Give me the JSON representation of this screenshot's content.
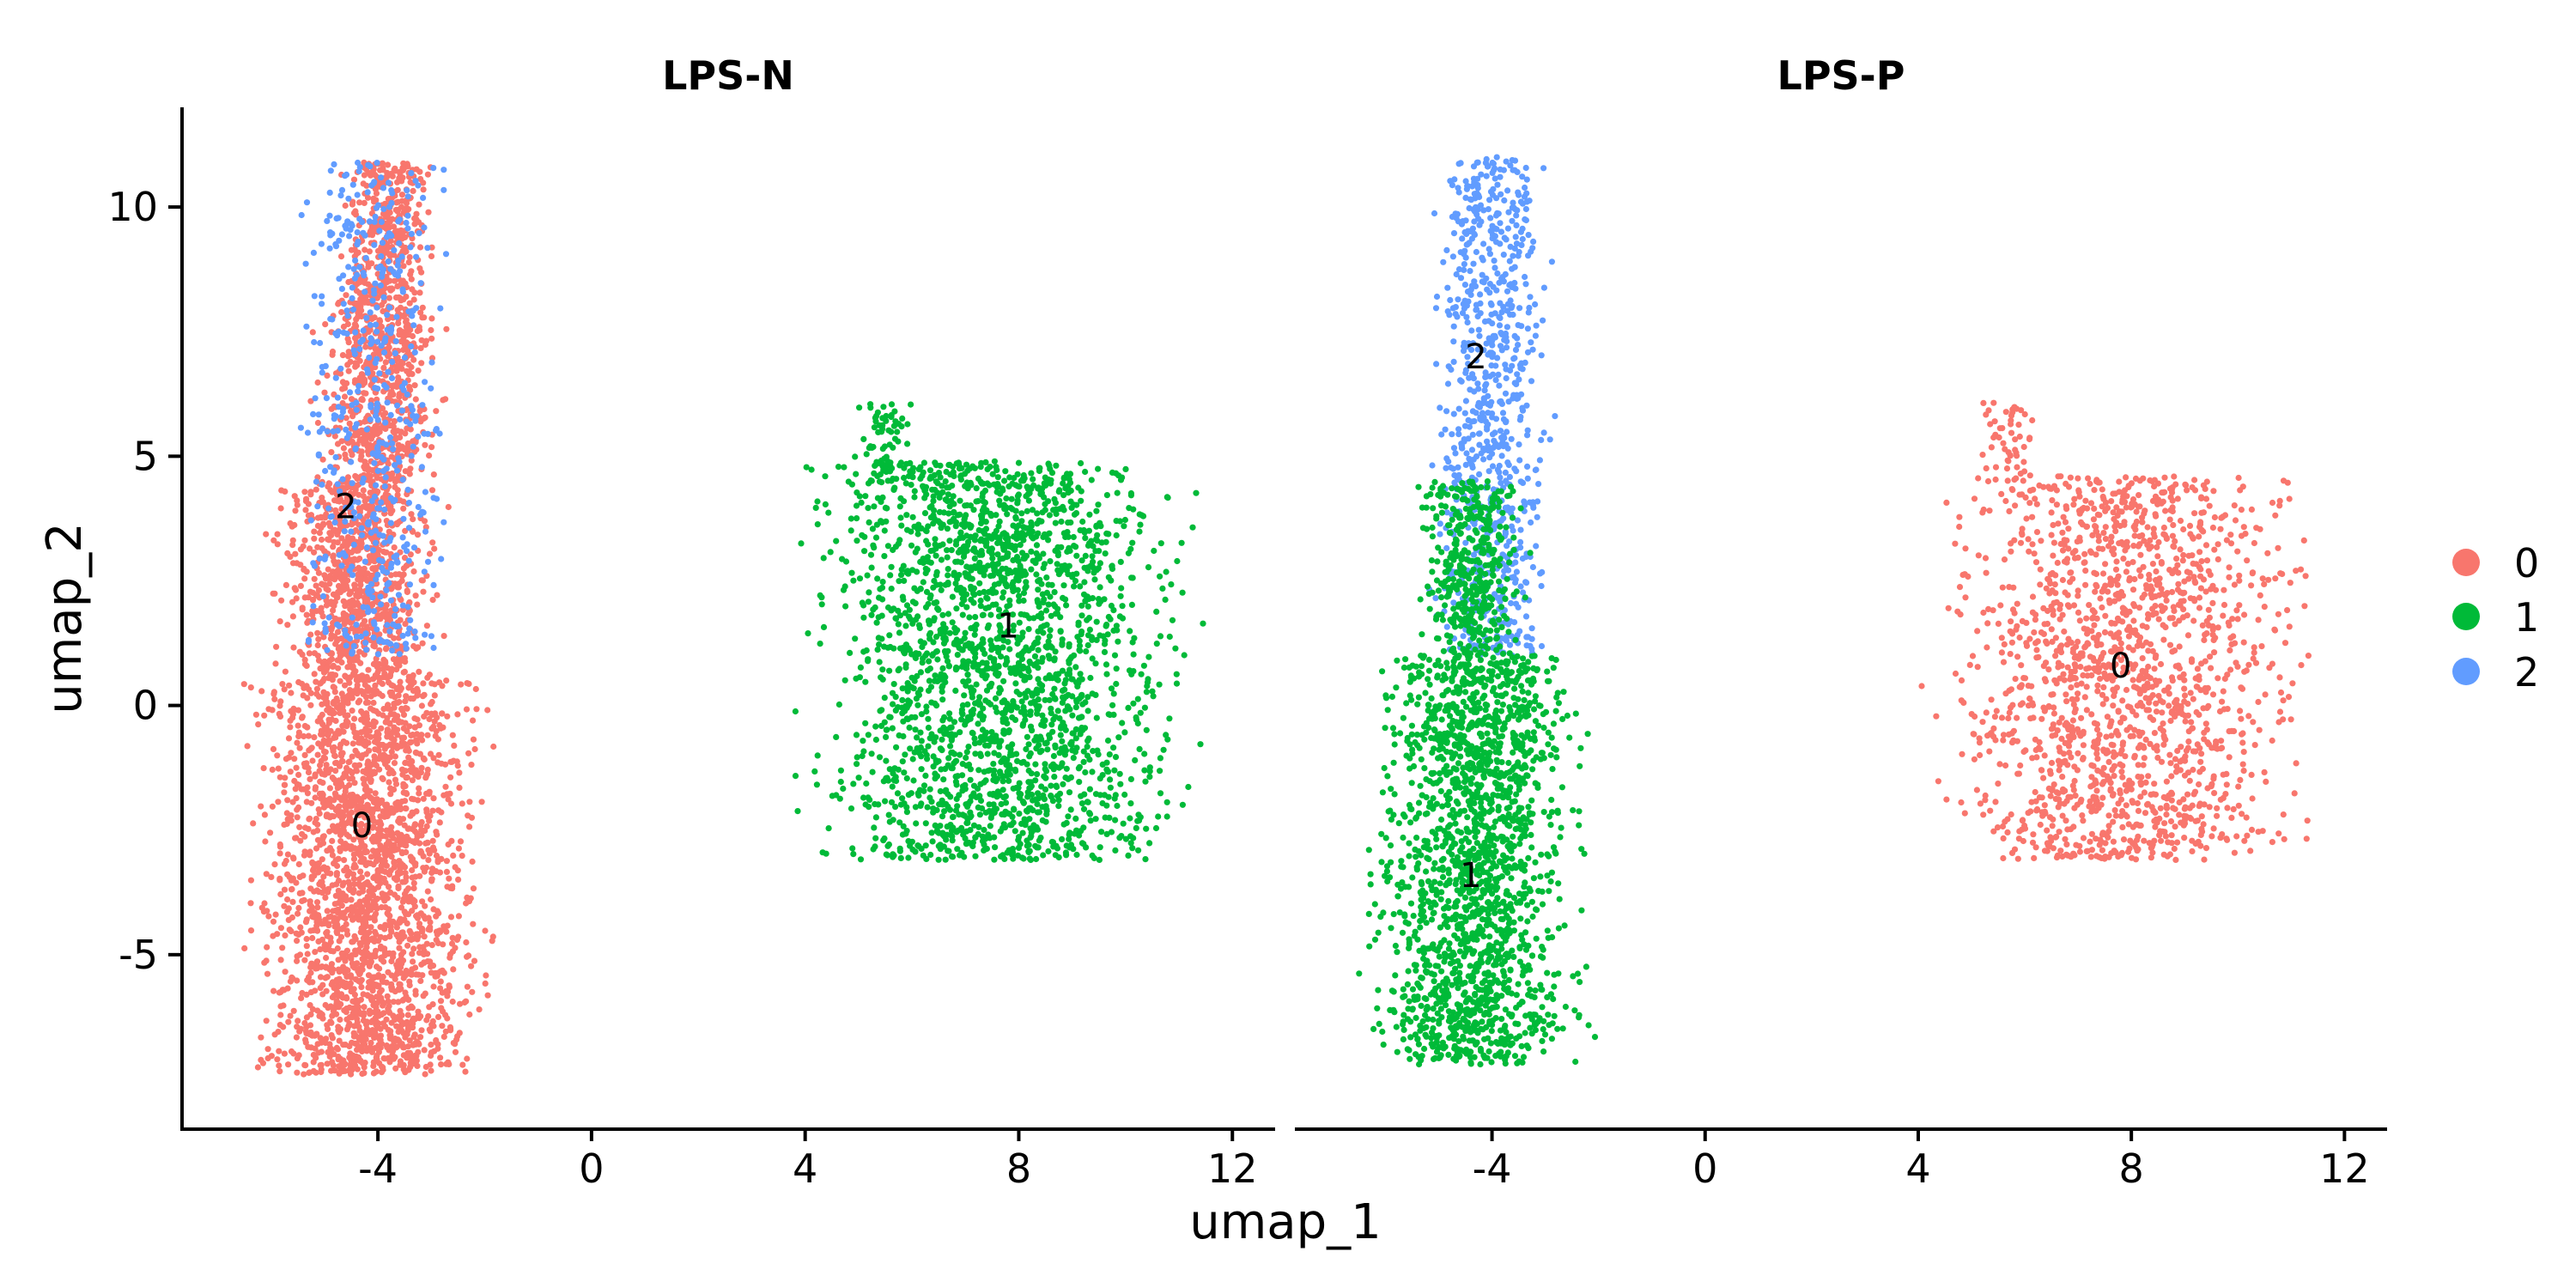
{
  "colors": {
    "cluster_0": "#F8766D",
    "cluster_1": "#00BA38",
    "cluster_2": "#619CFF"
  },
  "chart_data": {
    "type": "scatter",
    "xlabel": "umap_1",
    "ylabel": "umap_2",
    "xlim": [
      -7.7,
      12.8
    ],
    "ylim": [
      -8.5,
      12.0
    ],
    "x_ticks": [
      -4,
      0,
      4,
      8,
      12
    ],
    "y_ticks": [
      -5,
      0,
      5,
      10
    ],
    "x_tick_labels": [
      "-4",
      "0",
      "4",
      "8",
      "12"
    ],
    "y_tick_labels": [
      "-5",
      "0",
      "5",
      "10"
    ],
    "legend": {
      "position": "right",
      "entries": [
        {
          "label": "0",
          "color": "#F8766D"
        },
        {
          "label": "1",
          "color": "#00BA38"
        },
        {
          "label": "2",
          "color": "#619CFF"
        }
      ]
    },
    "panels": [
      {
        "title": "LPS-N",
        "cluster_labels": [
          {
            "text": "0",
            "x": -4.3,
            "y": -2.4
          },
          {
            "text": "1",
            "x": 7.8,
            "y": 1.6
          },
          {
            "text": "2",
            "x": -4.6,
            "y": 4.0
          }
        ],
        "clusters": [
          {
            "name": "0",
            "color": "#F8766D",
            "n": 4200,
            "regions": [
              {
                "x": [
                  -6.8,
                  -1.6
                ],
                "y": [
                  -7.4,
                  0.5
                ],
                "cx": -4.2,
                "w": 2.6
              },
              {
                "x": [
                  -6.4,
                  -2.2
                ],
                "y": [
                  0.5,
                  4.5
                ],
                "cx": -4.4,
                "w": 1.8
              },
              {
                "x": [
                  -5.6,
                  -2.6
                ],
                "y": [
                  4.5,
                  8.5
                ],
                "cx": -4.0,
                "w": 1.4
              },
              {
                "x": [
                  -5.0,
                  -2.8
                ],
                "y": [
                  8.5,
                  10.9
                ],
                "cx": -3.8,
                "w": 1.0
              }
            ]
          },
          {
            "name": "1",
            "color": "#00BA38",
            "n": 2400,
            "regions": [
              {
                "x": [
                  3.2,
                  11.7
                ],
                "y": [
                  -3.1,
                  4.9
                ],
                "cx": 7.6,
                "w": 4.2
              },
              {
                "x": [
                  4.8,
                  6.2
                ],
                "y": [
                  4.5,
                  6.1
                ],
                "cx": 5.5,
                "w": 0.7
              }
            ]
          },
          {
            "name": "2",
            "color": "#619CFF",
            "n": 500,
            "regions": [
              {
                "x": [
                  -6.2,
                  -2.6
                ],
                "y": [
                  1.0,
                  10.9
                ],
                "cx": -4.1,
                "w": 1.7
              }
            ]
          }
        ]
      },
      {
        "title": "LPS-P",
        "cluster_labels": [
          {
            "text": "2",
            "x": -4.3,
            "y": 7.0
          },
          {
            "text": "1",
            "x": -4.4,
            "y": -3.4
          },
          {
            "text": "0",
            "x": 7.8,
            "y": 0.8
          }
        ],
        "clusters": [
          {
            "name": "2",
            "color": "#619CFF",
            "n": 800,
            "regions": [
              {
                "x": [
                  -5.5,
                  -2.8
                ],
                "y": [
                  1.0,
                  11.0
                ],
                "cx": -4.0,
                "w": 1.3
              }
            ]
          },
          {
            "name": "1",
            "color": "#00BA38",
            "n": 2200,
            "regions": [
              {
                "x": [
                  -6.8,
                  -1.6
                ],
                "y": [
                  -7.2,
                  1.0
                ],
                "cx": -4.3,
                "w": 2.4
              },
              {
                "x": [
                  -5.8,
                  -3.0
                ],
                "y": [
                  1.0,
                  4.5
                ],
                "cx": -4.4,
                "w": 1.2
              }
            ]
          },
          {
            "name": "0",
            "color": "#F8766D",
            "n": 1700,
            "regions": [
              {
                "x": [
                  3.2,
                  11.7
                ],
                "y": [
                  -3.1,
                  4.6
                ],
                "cx": 7.8,
                "w": 4.2
              },
              {
                "x": [
                  4.8,
                  6.2
                ],
                "y": [
                  4.5,
                  6.1
                ],
                "cx": 5.7,
                "w": 0.6
              }
            ]
          }
        ]
      }
    ]
  }
}
